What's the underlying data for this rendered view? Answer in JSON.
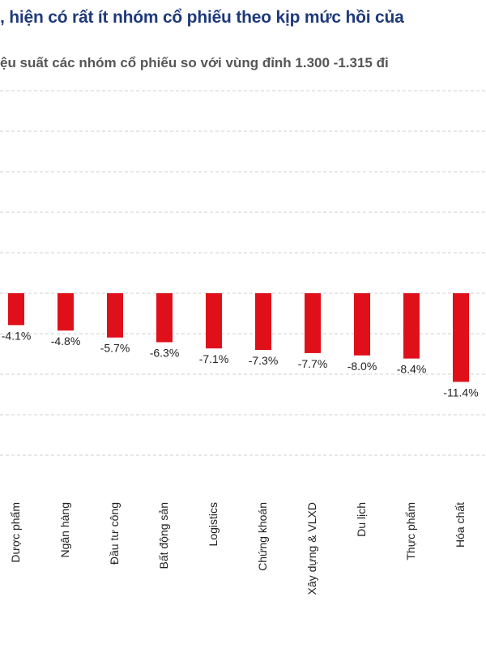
{
  "title": ", hiện có rất ít nhóm cổ phiếu theo kịp mức hồi của",
  "subtitle": "ệu suất các nhóm cổ phiếu so với vùng đỉnh 1.300 -1.315 đi",
  "colors": {
    "bar": "#e0101a",
    "grid": "#d0d0d0",
    "title": "#1f3a7a"
  },
  "chart_data": {
    "type": "bar",
    "categories": [
      "Dược phẩm",
      "Ngân hàng",
      "Đầu tư công",
      "Bất động sản",
      "Logistics",
      "Chứng khoán",
      "Xây dựng & VLXD",
      "Du lịch",
      "Thực phẩm",
      "Hóa chất"
    ],
    "values": [
      -4.1,
      -4.8,
      -5.7,
      -6.3,
      -7.1,
      -7.3,
      -7.7,
      -8.0,
      -8.4,
      -11.4
    ],
    "value_labels": [
      "-4.1%",
      "-4.8%",
      "-5.7%",
      "-6.3%",
      "-7.1%",
      "-7.3%",
      "-7.7%",
      "-8.0%",
      "-8.4%",
      "-11.4%"
    ],
    "grid": true,
    "legend": "none"
  }
}
